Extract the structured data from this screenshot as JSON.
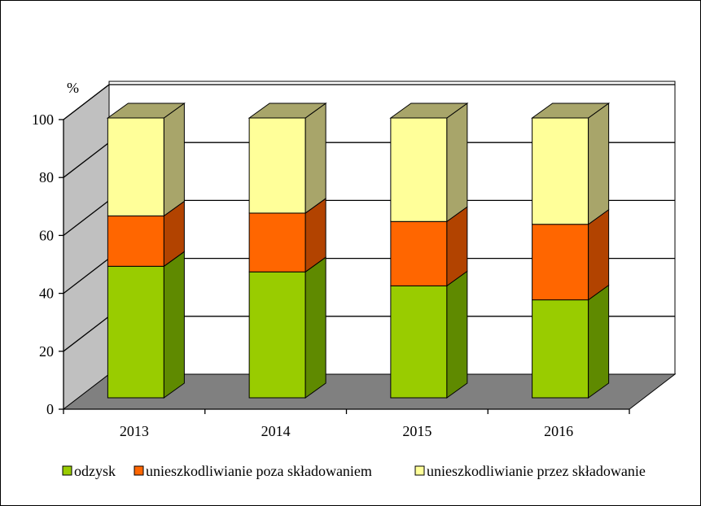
{
  "chart_data": {
    "type": "bar",
    "stacked": true,
    "three_d": true,
    "y_unit_label": "%",
    "categories": [
      "2013",
      "2014",
      "2015",
      "2016"
    ],
    "y_ticks": [
      "0",
      "20",
      "40",
      "60",
      "80",
      "100"
    ],
    "ylim": [
      0,
      100
    ],
    "grid": true,
    "legend_position": "bottom",
    "series": [
      {
        "name": "odzysk",
        "values": [
          47,
          45,
          40,
          35
        ],
        "color": "#99cc00",
        "side_color": "#5f8a00"
      },
      {
        "name": "unieszkodliwianie poza składowaniem",
        "values": [
          18,
          21,
          23,
          27
        ],
        "color": "#ff6600",
        "side_color": "#b24300"
      },
      {
        "name": "unieszkodliwianie przez składowanie",
        "values": [
          35,
          34,
          37,
          38
        ],
        "color": "#ffff99",
        "side_color": "#a8a56a"
      }
    ]
  }
}
